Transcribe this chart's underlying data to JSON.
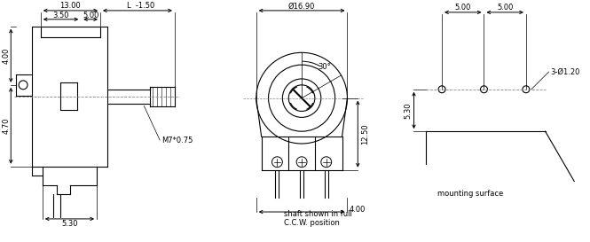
{
  "bg_color": "#ffffff",
  "line_color": "#000000",
  "gray_line": "#888888",
  "font_size": 6,
  "annotations": {
    "dim_13": "13.00",
    "dim_L": "L  -1.50",
    "dim_3_5": "3.50",
    "dim_5_top": "5.00",
    "dim_4_left": "4.00",
    "dim_4_70": "4.70",
    "dim_5_30_bot": "5.30",
    "dim_M7": "M7*0.75",
    "dim_dia": "Ø16.90",
    "dim_30": "30°",
    "dim_12_5": "12.50",
    "dim_4_bot": "4.00",
    "caption1": "shaft shown in full",
    "caption2": "C.C.W. position",
    "dim_5_right1": "5.00",
    "dim_5_right2": "5.00",
    "dim_3dia": "3-Ø1.20",
    "dim_5_30_right": "5.30",
    "dim_mount": "mounting surface"
  }
}
